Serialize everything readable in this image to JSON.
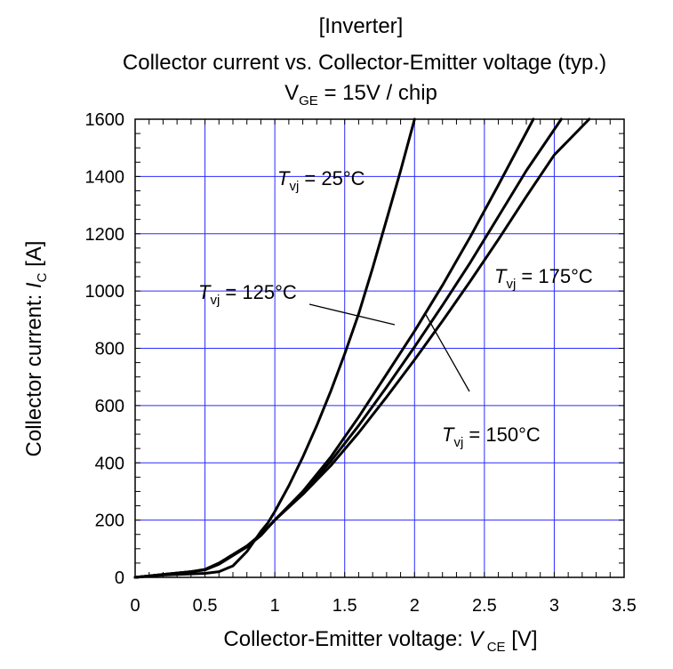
{
  "header": {
    "line1": "[Inverter]",
    "line2": "Collector current vs. Collector-Emitter voltage (typ.)",
    "line3_main": "V",
    "line3_sub": "GE",
    "line3_rest": " = 15V / chip"
  },
  "chart_data": {
    "type": "line",
    "xlabel_prefix": "Collector-Emitter voltage: ",
    "xlabel_var": "V",
    "xlabel_sub": " CE",
    "xlabel_unit": " [V]",
    "ylabel_prefix": "Collector current: ",
    "ylabel_var": "I",
    "ylabel_sub": "C",
    "ylabel_unit": " [A]",
    "xlim": [
      0,
      3.5
    ],
    "ylim": [
      0,
      1600
    ],
    "xticks": [
      0,
      0.5,
      1,
      1.5,
      2,
      2.5,
      3,
      3.5
    ],
    "xtick_labels": [
      "0",
      "0.5",
      "1",
      "1.5",
      "2",
      "2.5",
      "3",
      "3.5"
    ],
    "yticks": [
      0,
      200,
      400,
      600,
      800,
      1000,
      1200,
      1400,
      1600
    ],
    "ytick_labels": [
      "0",
      "200",
      "400",
      "600",
      "800",
      "1000",
      "1200",
      "1400",
      "1600"
    ],
    "grid": true,
    "grid_color": "#2a2aff",
    "line_color": "#000000",
    "series": [
      {
        "name": "Tvj = 25°C",
        "x": [
          0,
          0.2,
          0.4,
          0.5,
          0.6,
          0.7,
          0.8,
          0.9,
          0.95,
          1.0,
          1.1,
          1.2,
          1.3,
          1.4,
          1.5,
          1.6,
          1.7,
          1.8,
          1.9,
          2.0
        ],
        "y": [
          0,
          8,
          12,
          14,
          20,
          40,
          90,
          160,
          190,
          230,
          320,
          420,
          530,
          650,
          780,
          920,
          1080,
          1250,
          1420,
          1600
        ]
      },
      {
        "name": "Tvj = 125°C",
        "x": [
          0,
          0.2,
          0.4,
          0.5,
          0.6,
          0.7,
          0.8,
          0.9,
          1.0,
          1.2,
          1.4,
          1.6,
          1.8,
          2.0,
          2.2,
          2.4,
          2.6,
          2.85
        ],
        "y": [
          0,
          10,
          20,
          28,
          50,
          80,
          110,
          150,
          200,
          300,
          420,
          560,
          710,
          860,
          1020,
          1190,
          1370,
          1600
        ]
      },
      {
        "name": "Tvj = 150°C",
        "x": [
          0,
          0.2,
          0.4,
          0.5,
          0.6,
          0.7,
          0.8,
          0.9,
          1.0,
          1.2,
          1.4,
          1.6,
          1.8,
          2.0,
          2.2,
          2.4,
          2.6,
          2.8,
          3.05
        ],
        "y": [
          0,
          10,
          20,
          27,
          48,
          78,
          108,
          148,
          200,
          295,
          405,
          530,
          665,
          805,
          950,
          1100,
          1260,
          1420,
          1600
        ]
      },
      {
        "name": "Tvj = 175°C",
        "x": [
          0,
          0.2,
          0.4,
          0.5,
          0.6,
          0.7,
          0.8,
          0.9,
          1.0,
          1.2,
          1.4,
          1.6,
          1.8,
          2.0,
          2.2,
          2.4,
          2.6,
          2.8,
          3.0,
          3.25
        ],
        "y": [
          0,
          10,
          20,
          26,
          46,
          76,
          106,
          146,
          200,
          290,
          390,
          505,
          630,
          760,
          895,
          1035,
          1180,
          1330,
          1475,
          1600
        ]
      }
    ],
    "annotations": [
      {
        "var": "T",
        "sub": "vj",
        "rest": " = 25°C"
      },
      {
        "var": "T",
        "sub": "vj",
        "rest": " = 125°C"
      },
      {
        "var": "T",
        "sub": "vj",
        "rest": " = 175°C"
      },
      {
        "var": "T",
        "sub": "vj",
        "rest": " = 150°C"
      }
    ]
  }
}
